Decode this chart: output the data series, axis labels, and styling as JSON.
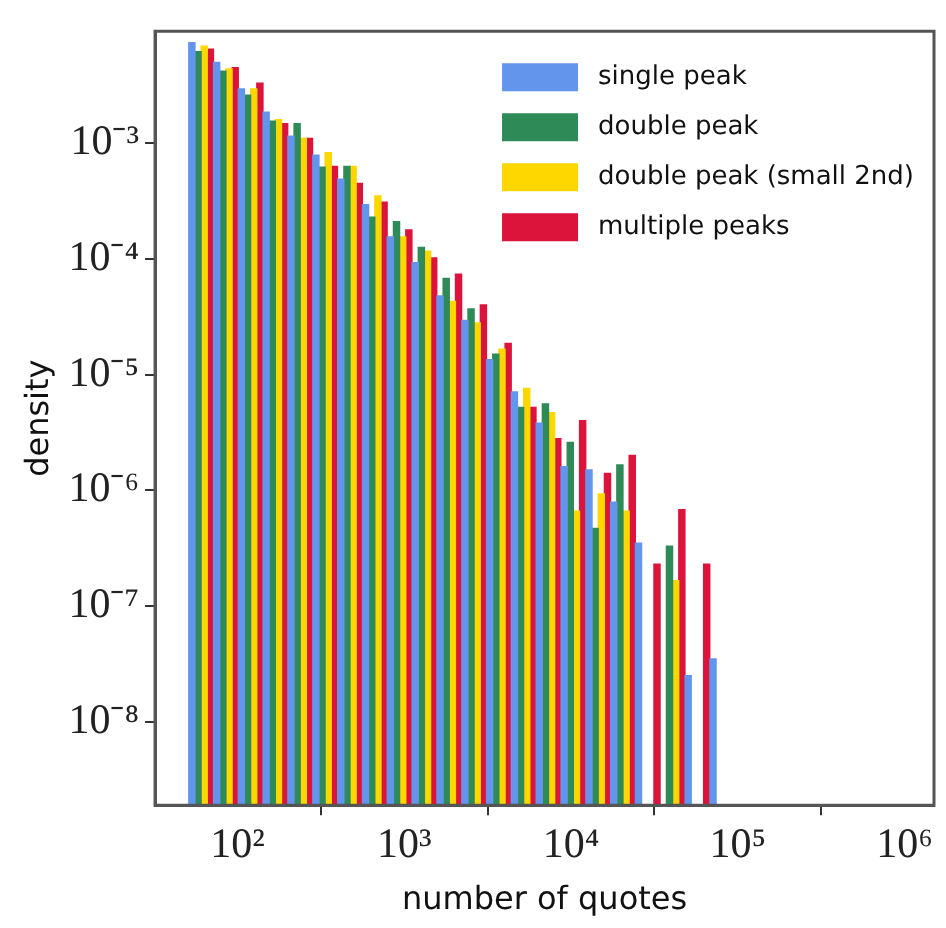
{
  "chart_data": {
    "type": "histogram",
    "xlabel": "number of quotes",
    "ylabel": "density",
    "log": "xy",
    "legend": "top right",
    "grid": false,
    "bins": [
      50.9,
      71.8,
      101,
      142,
      200,
      282,
      398,
      561,
      789,
      1112,
      1567,
      2208,
      3112,
      4375,
      6166,
      8690,
      12250,
      17260,
      24270,
      34200,
      48190,
      67920,
      95720
    ],
    "xlim": [
      32,
      1500000
    ],
    "ylim": [
      1.9e-09,
      0.0093
    ],
    "xticks": [
      {
        "value": 100,
        "label": "10²"
      },
      {
        "value": 1000,
        "label": "10³"
      },
      {
        "value": 10000,
        "label": "10⁴"
      },
      {
        "value": 100000,
        "label": "10⁵"
      },
      {
        "value": 1000000,
        "label": "10⁶"
      }
    ],
    "yticks": [
      {
        "value": 1e-08,
        "label": "10⁻⁸"
      },
      {
        "value": 1e-07,
        "label": "10⁻⁷"
      },
      {
        "value": 1e-06,
        "label": "10⁻⁶"
      },
      {
        "value": 1e-05,
        "label": "10⁻⁵"
      },
      {
        "value": 0.0001,
        "label": "10⁻⁴"
      },
      {
        "value": 0.001,
        "label": "10⁻³"
      }
    ],
    "series": [
      {
        "name": "single peak",
        "color": "#6495ed",
        "values": [
          0.0074,
          0.005,
          0.00295,
          0.00186,
          0.00115,
          0.00079,
          0.00049,
          0.000295,
          0.000155,
          9.3e-05,
          4.8e-05,
          2.95e-05,
          1.35e-05,
          7.1e-06,
          3.8e-06,
          1.6e-06,
          1.5e-06,
          7.9e-07,
          3.5e-07,
          null,
          2.5e-08,
          3.5e-08
        ]
      },
      {
        "name": "double peak",
        "color": "#2e8b57",
        "values": [
          0.0062,
          0.0042,
          0.0026,
          0.00155,
          0.00148,
          0.00062,
          0.00063,
          0.00023,
          0.00021,
          0.000126,
          6.8e-05,
          3.7e-05,
          1.5e-05,
          5.2e-06,
          5.6e-06,
          2.6e-06,
          4.7e-07,
          1.66e-06,
          null,
          3.3e-07,
          null,
          null
        ]
      },
      {
        "name": "double peak (small 2nd)",
        "color": "#ffd700",
        "values": [
          0.0069,
          0.0044,
          0.00295,
          0.0016,
          0.0011,
          0.00083,
          0.00063,
          0.00035,
          0.000155,
          0.000117,
          4.3e-05,
          2.8e-05,
          1.66e-05,
          7.6e-06,
          4.7e-06,
          6.6e-07,
          9.3e-07,
          6.6e-07,
          null,
          1.66e-07,
          null,
          null
        ]
      },
      {
        "name": "multiple peaks",
        "color": "#dc143c",
        "values": [
          0.0065,
          0.0045,
          0.0033,
          0.00148,
          0.0011,
          0.00063,
          0.00045,
          0.00031,
          0.000178,
          0.000102,
          7.4e-05,
          4e-05,
          1.86e-05,
          5.2e-06,
          2.8e-06,
          4e-06,
          1.4e-06,
          2e-06,
          2.3e-07,
          6.8e-07,
          2.3e-07,
          null
        ]
      }
    ]
  }
}
